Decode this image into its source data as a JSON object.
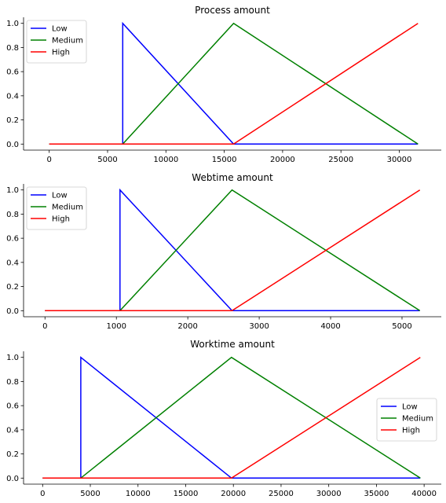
{
  "chart_data": [
    {
      "type": "line",
      "title": "Process amount",
      "xlabel": "",
      "ylabel": "",
      "xlim": [
        -2200,
        33600
      ],
      "ylim": [
        -0.05,
        1.05
      ],
      "xticks": [
        0,
        5000,
        10000,
        15000,
        20000,
        25000,
        30000
      ],
      "xtick_labels": [
        "0",
        "5000",
        "10000",
        "15000",
        "20000",
        "25000",
        "30000"
      ],
      "yticks": [
        0.0,
        0.2,
        0.4,
        0.6,
        0.8,
        1.0
      ],
      "ytick_labels": [
        "0.0",
        "0.2",
        "0.4",
        "0.6",
        "0.8",
        "1.0"
      ],
      "grid": false,
      "legend_position": "top-left",
      "series": [
        {
          "name": "Low",
          "color": "#0000ff",
          "x": [
            0,
            6300,
            6300,
            15800,
            31600
          ],
          "y": [
            0,
            0,
            1,
            0,
            0
          ]
        },
        {
          "name": "Medium",
          "color": "#008000",
          "x": [
            0,
            6300,
            15800,
            31600
          ],
          "y": [
            0,
            0,
            1,
            0
          ]
        },
        {
          "name": "High",
          "color": "#ff0000",
          "x": [
            0,
            15800,
            31600
          ],
          "y": [
            0,
            0,
            1
          ]
        }
      ]
    },
    {
      "type": "line",
      "title": "Webtime amount",
      "xlabel": "",
      "ylabel": "",
      "xlim": [
        -300,
        5550
      ],
      "ylim": [
        -0.05,
        1.05
      ],
      "xticks": [
        0,
        1000,
        2000,
        3000,
        4000,
        5000
      ],
      "xtick_labels": [
        "0",
        "1000",
        "2000",
        "3000",
        "4000",
        "5000"
      ],
      "yticks": [
        0.0,
        0.2,
        0.4,
        0.6,
        0.8,
        1.0
      ],
      "ytick_labels": [
        "0.0",
        "0.2",
        "0.4",
        "0.6",
        "0.8",
        "1.0"
      ],
      "grid": false,
      "legend_position": "top-left",
      "series": [
        {
          "name": "Low",
          "color": "#0000ff",
          "x": [
            0,
            1050,
            1050,
            2620,
            5250
          ],
          "y": [
            0,
            0,
            1,
            0,
            0
          ]
        },
        {
          "name": "Medium",
          "color": "#008000",
          "x": [
            0,
            1050,
            2620,
            5250
          ],
          "y": [
            0,
            0,
            1,
            0
          ]
        },
        {
          "name": "High",
          "color": "#ff0000",
          "x": [
            0,
            2620,
            5250
          ],
          "y": [
            0,
            0,
            1
          ]
        }
      ]
    },
    {
      "type": "line",
      "title": "Worktime amount",
      "xlabel": "",
      "ylabel": "",
      "xlim": [
        -2000,
        41800
      ],
      "ylim": [
        -0.05,
        1.05
      ],
      "xticks": [
        0,
        5000,
        10000,
        15000,
        20000,
        25000,
        30000,
        35000,
        40000
      ],
      "xtick_labels": [
        "0",
        "5000",
        "10000",
        "15000",
        "20000",
        "25000",
        "30000",
        "35000",
        "40000"
      ],
      "yticks": [
        0.0,
        0.2,
        0.4,
        0.6,
        0.8,
        1.0
      ],
      "ytick_labels": [
        "0.0",
        "0.2",
        "0.4",
        "0.6",
        "0.8",
        "1.0"
      ],
      "grid": false,
      "legend_position": "center-right",
      "series": [
        {
          "name": "Low",
          "color": "#0000ff",
          "x": [
            0,
            4000,
            4000,
            19800,
            39600
          ],
          "y": [
            0,
            0,
            1,
            0,
            0
          ]
        },
        {
          "name": "Medium",
          "color": "#008000",
          "x": [
            0,
            4000,
            19800,
            39600
          ],
          "y": [
            0,
            0,
            1,
            0
          ]
        },
        {
          "name": "High",
          "color": "#ff0000",
          "x": [
            0,
            19800,
            39600
          ],
          "y": [
            0,
            0,
            1
          ]
        }
      ]
    }
  ]
}
